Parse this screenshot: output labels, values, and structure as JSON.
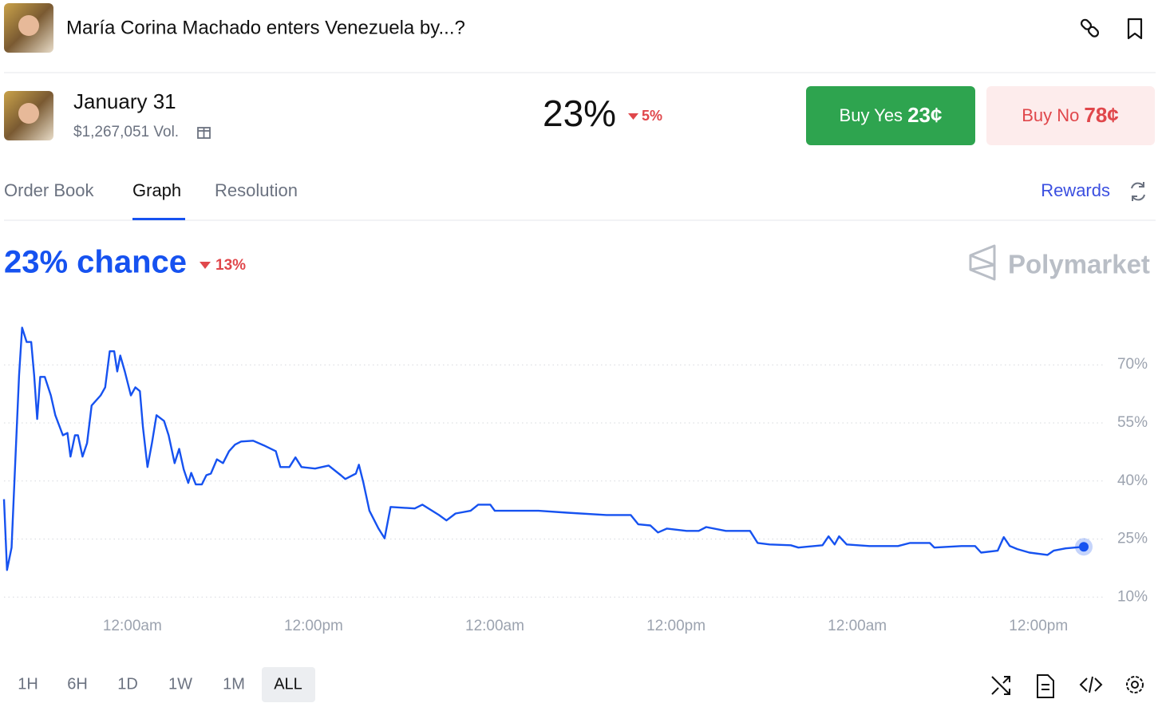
{
  "header": {
    "title": "María Corina Machado enters Venezuela by...?"
  },
  "market": {
    "date": "January 31",
    "volume": "$1,267,051 Vol.",
    "price": "23%",
    "change": "5%",
    "buy_yes": {
      "label": "Buy Yes",
      "price": "23¢"
    },
    "buy_no": {
      "label": "Buy No",
      "price": "78¢"
    }
  },
  "tabs": [
    "Order Book",
    "Graph",
    "Resolution"
  ],
  "rewards": "Rewards",
  "graph": {
    "headline": "23% chance",
    "change": "13%",
    "brand": "Polymarket",
    "ranges": [
      "1H",
      "6H",
      "1D",
      "1W",
      "1M",
      "ALL"
    ]
  },
  "chart_data": {
    "type": "line",
    "color": "#1652f0",
    "grid": true,
    "x": [
      0,
      0.2,
      0.5,
      0.7,
      1.0,
      1.2,
      1.5,
      1.8,
      2.0,
      2.2,
      2.4,
      2.7,
      3.1,
      3.4,
      3.9,
      4.2,
      4.4,
      4.7,
      4.9,
      5.2,
      5.5,
      5.8,
      6.4,
      6.7,
      7.0,
      7.3,
      7.5,
      7.7,
      8.0,
      8.4,
      8.7,
      9.0,
      9.2,
      9.5,
      9.8,
      10.1,
      10.6,
      10.9,
      11.3,
      11.6,
      11.9,
      12.2,
      12.4,
      12.7,
      13.1,
      13.4,
      13.7,
      14.1,
      14.5,
      14.9,
      15.3,
      15.7,
      16.5,
      17.2,
      18.0,
      18.3,
      18.9,
      19.3,
      19.7,
      20.6,
      21.5,
      22.3,
      22.6,
      23.3,
      23.5,
      23.8,
      24.2,
      24.8,
      25.2,
      25.6,
      27.2,
      27.7,
      28.8,
      29.3,
      29.9,
      30.9,
      31.4,
      32.2,
      32.5,
      34.1,
      35.4,
      37.3,
      39.9,
      41.5,
      42.0,
      42.8,
      43.3,
      43.9,
      45.2,
      46.0,
      46.5,
      47.8,
      49.4,
      49.9,
      50.7,
      52.1,
      52.6,
      54.2,
      54.6,
      55.0,
      55.3,
      55.8,
      57.3,
      59.2,
      60.0,
      61.3,
      61.6,
      63.4,
      64.3,
      64.7,
      65.8,
      66.2,
      66.6,
      67.1,
      67.9,
      69.1,
      69.5,
      70.3,
      71.5
    ],
    "values": [
      35.3,
      17.0,
      22.8,
      40.5,
      67.3,
      79.6,
      75.9,
      75.9,
      67.3,
      56.0,
      66.9,
      66.9,
      62.1,
      57.0,
      51.8,
      52.4,
      46.3,
      51.8,
      51.8,
      46.3,
      49.8,
      59.5,
      62.1,
      64.2,
      73.5,
      73.5,
      68.3,
      72.4,
      68.3,
      62.1,
      64.2,
      63.2,
      53.9,
      43.6,
      49.8,
      57.0,
      55.5,
      51.8,
      44.6,
      48.3,
      43.0,
      39.5,
      42.1,
      39.1,
      39.1,
      41.5,
      41.9,
      45.6,
      44.6,
      47.7,
      49.4,
      50.2,
      50.4,
      49.2,
      47.7,
      43.6,
      43.6,
      46.1,
      43.6,
      43.2,
      44.0,
      41.5,
      40.5,
      41.9,
      44.2,
      39.5,
      32.3,
      27.7,
      25.2,
      33.3,
      32.9,
      33.9,
      31.2,
      29.8,
      31.6,
      32.3,
      33.9,
      33.9,
      32.3,
      32.3,
      32.3,
      31.8,
      31.2,
      31.2,
      28.8,
      28.5,
      26.7,
      27.7,
      27.1,
      27.1,
      28.1,
      27.1,
      27.1,
      24.0,
      23.6,
      23.4,
      22.8,
      23.4,
      25.7,
      23.6,
      25.7,
      23.6,
      23.2,
      23.2,
      24.0,
      24.0,
      22.8,
      23.2,
      23.2,
      21.5,
      22.0,
      25.5,
      23.2,
      22.4,
      21.5,
      20.9,
      22.0,
      22.6,
      23
    ],
    "xlim": [
      0,
      71.5
    ],
    "xticks": [
      {
        "value": 8.5,
        "label": "12:00am"
      },
      {
        "value": 20.5,
        "label": "12:00pm"
      },
      {
        "value": 32.5,
        "label": "12:00am"
      },
      {
        "value": 44.5,
        "label": "12:00pm"
      },
      {
        "value": 56.5,
        "label": "12:00am"
      },
      {
        "value": 68.5,
        "label": "12:00pm"
      }
    ],
    "ylim": [
      8,
      82
    ],
    "yticks": [
      {
        "value": 10,
        "label": "10%"
      },
      {
        "value": 25,
        "label": "25%"
      },
      {
        "value": 40,
        "label": "40%"
      },
      {
        "value": 55,
        "label": "55%"
      },
      {
        "value": 70,
        "label": "70%"
      }
    ]
  }
}
